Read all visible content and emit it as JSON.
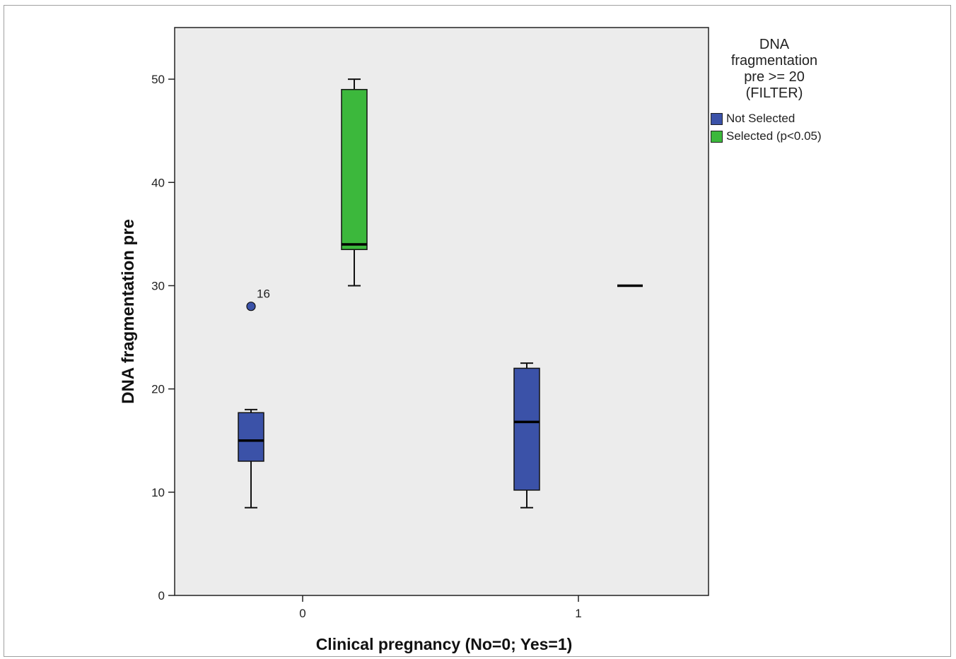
{
  "chart_data": {
    "type": "boxplot",
    "xlabel": "Clinical pregnancy (No=0; Yes=1)",
    "ylabel": "DNA fragmentation pre",
    "ylim": [
      0,
      55
    ],
    "yticks": [
      0,
      10,
      20,
      30,
      40,
      50
    ],
    "categories": [
      "0",
      "1"
    ],
    "legend": {
      "title": "DNA fragmentation pre >= 20 (FILTER)",
      "title_lines": [
        "DNA",
        "fragmentation",
        "pre >= 20",
        "(FILTER)"
      ],
      "position": "right",
      "entries": [
        {
          "label": "Not Selected",
          "color": "#3b52a8"
        },
        {
          "label": "Selected (p<0.05)",
          "color": "#3cb83c"
        }
      ]
    },
    "series": [
      {
        "name": "Not Selected",
        "color": "#3b52a8",
        "boxes": [
          {
            "category": "0",
            "min": 8.5,
            "q1": 13.0,
            "median": 15.0,
            "q3": 17.7,
            "max": 18.0,
            "outliers": [
              {
                "value": 28.0,
                "label": "16"
              }
            ]
          },
          {
            "category": "1",
            "min": 8.5,
            "q1": 10.2,
            "median": 16.8,
            "q3": 22.0,
            "max": 22.5,
            "outliers": []
          }
        ]
      },
      {
        "name": "Selected (p<0.05)",
        "color": "#3cb83c",
        "boxes": [
          {
            "category": "0",
            "min": 30.0,
            "q1": 33.5,
            "median": 34.0,
            "q3": 49.0,
            "max": 50.0,
            "outliers": []
          },
          {
            "category": "1",
            "min": 30.0,
            "q1": 30.0,
            "median": 30.0,
            "q3": 30.0,
            "max": 30.0,
            "outliers": []
          }
        ]
      }
    ],
    "plot_background": "#ececec",
    "grid": false
  }
}
